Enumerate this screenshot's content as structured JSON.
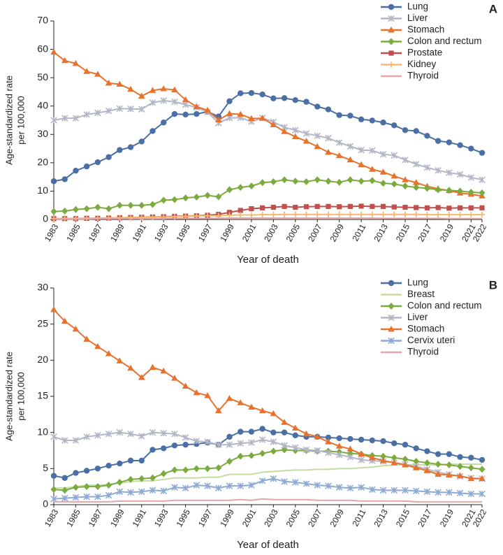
{
  "chart_data": [
    {
      "type": "line",
      "panel": "A",
      "ylabel": [
        "Age-standardized rate",
        "per 100,000"
      ],
      "xlabel": "Year of death",
      "x": [
        1983,
        1984,
        1985,
        1986,
        1987,
        1988,
        1989,
        1990,
        1991,
        1992,
        1993,
        1994,
        1995,
        1996,
        1997,
        1998,
        1999,
        2000,
        2001,
        2002,
        2003,
        2004,
        2005,
        2006,
        2007,
        2008,
        2009,
        2010,
        2011,
        2012,
        2013,
        2014,
        2015,
        2016,
        2017,
        2018,
        2019,
        2020,
        2021,
        2022
      ],
      "xlim": [
        1983,
        2022
      ],
      "xticks": [
        1983,
        1985,
        1987,
        1989,
        1991,
        1993,
        1995,
        1997,
        1999,
        2001,
        2003,
        2005,
        2007,
        2009,
        2011,
        2013,
        2015,
        2017,
        2019,
        2021,
        2022
      ],
      "ylim": [
        0,
        70
      ],
      "yticks": [
        0,
        10,
        20,
        30,
        40,
        50,
        60,
        70
      ],
      "grid": false,
      "legend": "upper right",
      "series": [
        {
          "name": "Lung",
          "color": "#4a6fa5",
          "marker": "circle",
          "values": [
            13.5,
            14.2,
            17.2,
            18.7,
            20.2,
            22,
            24.5,
            25.5,
            27.5,
            31.2,
            34.2,
            37.2,
            37,
            37.2,
            38,
            36.3,
            41.7,
            44.5,
            44.6,
            44.1,
            42.7,
            42.8,
            42.1,
            41.5,
            39.8,
            38.8,
            36.8,
            36.6,
            35.3,
            34.9,
            34.2,
            33.2,
            31.5,
            31.2,
            29.5,
            27.7,
            27.2,
            26.2,
            25,
            23.5
          ]
        },
        {
          "name": "Liver",
          "color": "#b3b6c6",
          "marker": "x",
          "values": [
            35,
            35.7,
            35.7,
            37,
            37.6,
            38.3,
            39.1,
            39,
            38.9,
            41.2,
            41.9,
            41.5,
            40.5,
            39.5,
            37.9,
            34,
            35.8,
            35.9,
            34.5,
            35.8,
            34.4,
            32.5,
            31.5,
            30.3,
            29.5,
            28.7,
            27.1,
            25.8,
            24.5,
            24.3,
            23,
            22.6,
            21,
            19.5,
            18.3,
            17.3,
            16.5,
            15.9,
            14.8,
            14
          ]
        },
        {
          "name": "Stomach",
          "color": "#e8722c",
          "marker": "triangle",
          "values": [
            59,
            56,
            55,
            52.2,
            51.2,
            48.1,
            47.7,
            45.9,
            43.5,
            45.5,
            46.1,
            45.7,
            42.2,
            39.8,
            38.5,
            35.1,
            37.3,
            37.1,
            35.6,
            35.7,
            33.4,
            31,
            29.2,
            27.6,
            25.7,
            23.7,
            22.5,
            21,
            19.3,
            17.7,
            16.7,
            15.3,
            14,
            13,
            11.7,
            10.8,
            10.2,
            9.3,
            8.9,
            8.3
          ]
        },
        {
          "name": "Colon and rectum",
          "color": "#7aab3f",
          "marker": "diamond",
          "values": [
            2.8,
            3,
            3.5,
            3.8,
            4.3,
            3.8,
            5,
            5,
            5,
            5.3,
            6.8,
            7,
            7.6,
            7.9,
            8.5,
            8,
            10.5,
            11.3,
            11.8,
            13,
            13.3,
            14,
            13.5,
            13.3,
            14,
            13.5,
            13.1,
            14,
            13.5,
            13.7,
            12.8,
            12.5,
            11.8,
            11.3,
            11,
            10.5,
            10.3,
            10,
            9.6,
            9.4
          ]
        },
        {
          "name": "Prostate",
          "color": "#c0504d",
          "marker": "square",
          "values": [
            0.3,
            0.3,
            0.3,
            0.4,
            0.4,
            0.5,
            0.6,
            0.7,
            0.8,
            0.9,
            1,
            1.1,
            1.2,
            1.3,
            1.5,
            1.8,
            2.5,
            3.2,
            3.8,
            4.1,
            4.3,
            4.6,
            4.3,
            4.5,
            4.6,
            4.6,
            4.5,
            4.6,
            4.7,
            4.6,
            4.6,
            4.4,
            4.3,
            4.2,
            4.1,
            4.2,
            4,
            4.1,
            4.1,
            4.1
          ]
        },
        {
          "name": "Kidney",
          "color": "#f5b971",
          "marker": "plus",
          "values": [
            0.3,
            0.4,
            0.4,
            0.5,
            0.5,
            0.6,
            0.6,
            0.7,
            0.7,
            0.8,
            0.9,
            1,
            1.1,
            1.2,
            1.3,
            1.3,
            1.5,
            1.6,
            1.6,
            1.7,
            1.7,
            1.8,
            1.8,
            1.8,
            1.8,
            1.8,
            1.8,
            1.8,
            1.8,
            1.8,
            1.8,
            1.8,
            1.8,
            1.8,
            1.7,
            1.7,
            1.7,
            1.7,
            1.7,
            1.7
          ]
        },
        {
          "name": "Thyroid",
          "color": "#e3a7a7",
          "marker": "none",
          "values": [
            0.2,
            0.2,
            0.2,
            0.2,
            0.3,
            0.3,
            0.3,
            0.3,
            0.3,
            0.3,
            0.3,
            0.4,
            0.4,
            0.4,
            0.4,
            0.4,
            0.5,
            0.5,
            0.5,
            0.5,
            0.5,
            0.5,
            0.5,
            0.5,
            0.5,
            0.5,
            0.5,
            0.5,
            0.5,
            0.5,
            0.4,
            0.4,
            0.4,
            0.4,
            0.4,
            0.4,
            0.3,
            0.3,
            0.3,
            0.3
          ]
        }
      ]
    },
    {
      "type": "line",
      "panel": "B",
      "ylabel": [
        "Age-standardized rate",
        "per 100,000"
      ],
      "xlabel": "Year of death",
      "x": [
        1983,
        1984,
        1985,
        1986,
        1987,
        1988,
        1989,
        1990,
        1991,
        1992,
        1993,
        1994,
        1995,
        1996,
        1997,
        1998,
        1999,
        2000,
        2001,
        2002,
        2003,
        2004,
        2005,
        2006,
        2007,
        2008,
        2009,
        2010,
        2011,
        2012,
        2013,
        2014,
        2015,
        2016,
        2017,
        2018,
        2019,
        2020,
        2021,
        2022
      ],
      "xlim": [
        1983,
        2022
      ],
      "xticks": [
        1983,
        1985,
        1987,
        1989,
        1991,
        1993,
        1995,
        1997,
        1999,
        2001,
        2003,
        2005,
        2007,
        2009,
        2011,
        2013,
        2015,
        2017,
        2019,
        2021,
        2022
      ],
      "ylim": [
        0,
        30
      ],
      "yticks": [
        0,
        5,
        10,
        15,
        20,
        25,
        30
      ],
      "grid": false,
      "legend": "upper right",
      "series": [
        {
          "name": "Lung",
          "color": "#4a6fa5",
          "marker": "circle",
          "values": [
            4,
            3.7,
            4.4,
            4.7,
            5,
            5.4,
            5.7,
            6.1,
            6.1,
            7.6,
            7.8,
            8.2,
            8.3,
            8.4,
            8.6,
            8.3,
            9.4,
            10.1,
            10.1,
            10.5,
            10,
            10,
            9.6,
            9.4,
            9.4,
            9.3,
            9.2,
            9.1,
            9,
            8.9,
            8.8,
            8.5,
            8.3,
            7.8,
            7.4,
            7,
            7,
            6.6,
            6.5,
            6.2
          ]
        },
        {
          "name": "Breast",
          "color": "#c5dca0",
          "marker": "none",
          "values": [
            2.3,
            2.3,
            2.5,
            2.7,
            2.7,
            2.8,
            3,
            3.2,
            3.3,
            3.3,
            3.5,
            3.7,
            3.7,
            3.7,
            3.8,
            3.8,
            4.2,
            4.2,
            4.2,
            4.5,
            4.6,
            4.7,
            4.8,
            4.8,
            4.9,
            4.9,
            5,
            5,
            5.1,
            5.2,
            5.4,
            5.5,
            5.5,
            5.5,
            5.5,
            5.5,
            5.6,
            5.6,
            5.6,
            5.6
          ]
        },
        {
          "name": "Colon and rectum",
          "color": "#7aab3f",
          "marker": "diamond",
          "values": [
            2.1,
            2,
            2.4,
            2.5,
            2.5,
            2.7,
            3.1,
            3.5,
            3.6,
            3.7,
            4.3,
            4.8,
            4.8,
            5,
            5,
            5.1,
            6,
            6.7,
            6.8,
            7.1,
            7.4,
            7.6,
            7.5,
            7.5,
            7.4,
            7.4,
            7.3,
            7.1,
            7,
            6.8,
            6.7,
            6.5,
            6.3,
            6,
            5.8,
            5.6,
            5.5,
            5.3,
            5.1,
            4.9
          ]
        },
        {
          "name": "Liver",
          "color": "#b3b6c6",
          "marker": "x",
          "values": [
            9.4,
            8.9,
            8.9,
            9.4,
            9.6,
            9.8,
            10,
            9.8,
            9.5,
            10,
            9.9,
            9.8,
            9.3,
            8.8,
            8.7,
            8.3,
            8.3,
            8.5,
            8.6,
            9,
            8.7,
            8.2,
            7.9,
            7.6,
            7.5,
            7.2,
            6.9,
            6.6,
            6.2,
            6.1,
            6,
            5.8,
            5.6,
            5.3,
            4.9,
            4.5,
            4.2,
            3.9,
            3.7,
            3.6
          ]
        },
        {
          "name": "Stomach",
          "color": "#e8722c",
          "marker": "triangle",
          "values": [
            27,
            25.4,
            24.3,
            22.9,
            21.9,
            20.9,
            19.9,
            18.9,
            17.6,
            19,
            18.5,
            17.5,
            16.4,
            15.5,
            15.1,
            13,
            14.7,
            14.1,
            13.5,
            13,
            12.6,
            11.4,
            10.6,
            9.8,
            9.4,
            8.7,
            8.1,
            7.7,
            7,
            6.5,
            6.1,
            5.8,
            5.5,
            5.1,
            4.7,
            4.2,
            4.1,
            4,
            3.6,
            3.6
          ]
        },
        {
          "name": "Cervix uteri",
          "color": "#8eaad4",
          "marker": "x",
          "values": [
            0.8,
            0.9,
            1,
            1.1,
            1.1,
            1.3,
            1.8,
            1.7,
            1.8,
            2,
            1.9,
            2.4,
            2.3,
            2.7,
            2.6,
            2.3,
            2.6,
            2.6,
            2.7,
            3.3,
            3.6,
            3.2,
            3.1,
            2.9,
            2.7,
            2.6,
            2.4,
            2.3,
            2.4,
            2.1,
            2,
            2,
            2,
            1.9,
            1.8,
            1.7,
            1.7,
            1.6,
            1.5,
            1.5
          ]
        },
        {
          "name": "Thyroid",
          "color": "#e3a7a7",
          "marker": "none",
          "values": [
            0.4,
            0.4,
            0.4,
            0.4,
            0.4,
            0.4,
            0.5,
            0.5,
            0.5,
            0.5,
            0.5,
            0.6,
            0.6,
            0.6,
            0.6,
            0.6,
            0.6,
            0.7,
            0.6,
            0.8,
            0.7,
            0.7,
            0.7,
            0.7,
            0.6,
            0.6,
            0.6,
            0.6,
            0.5,
            0.5,
            0.5,
            0.5,
            0.5,
            0.4,
            0.4,
            0.4,
            0.4,
            0.4,
            0.4,
            0.4
          ]
        }
      ]
    }
  ]
}
